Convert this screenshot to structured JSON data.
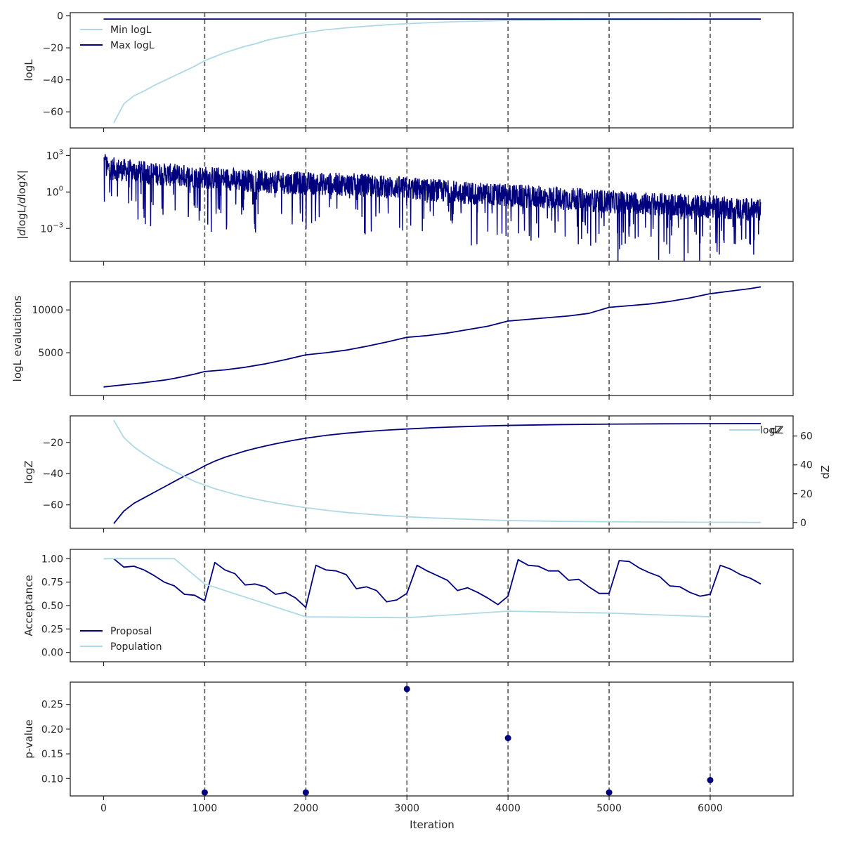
{
  "figure": {
    "xlabel": "Iteration"
  },
  "colors": {
    "dark": "#00007f",
    "light": "#add8e6",
    "axis": "#262626",
    "vline": "#555555"
  },
  "x_ticks": [
    0,
    1000,
    2000,
    3000,
    4000,
    5000,
    6000
  ],
  "x_range": [
    -330,
    6820
  ],
  "vlines": [
    1000,
    2000,
    3000,
    4000,
    5000,
    6000
  ],
  "chart_data": [
    {
      "type": "line",
      "panel": "logL",
      "ylabel": "logL",
      "ylim": [
        -70,
        2
      ],
      "y_ticks": [
        0,
        -20,
        -40,
        -60
      ],
      "legend": "upper-left",
      "series": [
        {
          "name": "Min logL",
          "color": "light",
          "x": [
            100,
            200,
            300,
            400,
            500,
            600,
            700,
            800,
            900,
            1000,
            1100,
            1200,
            1300,
            1400,
            1500,
            1600,
            1700,
            1800,
            1900,
            2000,
            2200,
            2400,
            2600,
            2800,
            3000,
            3250,
            3500,
            3750,
            4000,
            4500,
            5000,
            5500,
            6000,
            6500
          ],
          "y": [
            -67,
            -55,
            -50,
            -47,
            -43.5,
            -40.5,
            -37.5,
            -34.5,
            -31.5,
            -28,
            -25.5,
            -23,
            -21,
            -19,
            -17.5,
            -15.5,
            -14,
            -12.8,
            -11.6,
            -10.4,
            -8.7,
            -7.5,
            -6.5,
            -5.6,
            -4.9,
            -4.2,
            -3.6,
            -3.2,
            -2.9,
            -2.6,
            -2.4,
            -2.3,
            -2.2,
            -2.2
          ]
        },
        {
          "name": "Max logL",
          "color": "dark",
          "x": [
            0,
            6500
          ],
          "y": [
            -2,
            -2
          ]
        }
      ]
    },
    {
      "type": "line",
      "panel": "gradient",
      "ylabel": "|dlogL/dlogX|",
      "yscale": "log",
      "ylim": [
        -5.7,
        3.6
      ],
      "y_ticks": [
        {
          "exp": 3,
          "label": "10^3"
        },
        {
          "exp": 0,
          "label": "10^0"
        },
        {
          "exp": -3,
          "label": "10^-3"
        }
      ],
      "series": [
        {
          "name": "",
          "color": "dark",
          "noisy": true,
          "x": [
            0,
            500,
            1000,
            1500,
            2000,
            2500,
            3000,
            3500,
            4000,
            4500,
            5000,
            5500,
            6000,
            6500
          ],
          "log10_y_center": [
            2.0,
            1.5,
            1.2,
            0.9,
            0.7,
            0.6,
            0.3,
            0.0,
            -0.3,
            -0.5,
            -0.8,
            -1.0,
            -1.2,
            -1.5
          ],
          "x_range": [
            0,
            6500
          ],
          "log10_y_range": [
            -5.0,
            3.6
          ]
        }
      ]
    },
    {
      "type": "line",
      "panel": "evaluations",
      "ylabel": "logL evaluations",
      "ylim": [
        0,
        13300
      ],
      "y_ticks": [
        5000,
        10000
      ],
      "series": [
        {
          "name": "",
          "color": "dark",
          "x": [
            0,
            200,
            400,
            500,
            600,
            700,
            800,
            900,
            1000,
            1200,
            1400,
            1600,
            1800,
            2000,
            2200,
            2400,
            2600,
            2800,
            3000,
            3200,
            3400,
            3600,
            3800,
            4000,
            4200,
            4400,
            4600,
            4800,
            5000,
            5200,
            5400,
            5600,
            5800,
            6000,
            6200,
            6400,
            6500
          ],
          "y": [
            1000,
            1250,
            1500,
            1650,
            1800,
            2000,
            2250,
            2500,
            2800,
            3000,
            3300,
            3700,
            4200,
            4750,
            5000,
            5300,
            5750,
            6250,
            6800,
            7000,
            7300,
            7700,
            8100,
            8700,
            8900,
            9100,
            9300,
            9600,
            10300,
            10500,
            10700,
            11000,
            11400,
            11900,
            12200,
            12500,
            12700
          ]
        }
      ]
    },
    {
      "type": "line",
      "panel": "logZ",
      "ylabel": "logZ",
      "ylim": [
        -75,
        -3
      ],
      "y_ticks": [
        -20,
        -40,
        -60
      ],
      "y2label": "dZ",
      "y2lim": [
        -4,
        74
      ],
      "y2_ticks": [
        0,
        20,
        40,
        60
      ],
      "legend": "upper-right",
      "series": [
        {
          "name": "logZ",
          "color": "dark",
          "axis": "left",
          "x": [
            100,
            200,
            300,
            400,
            500,
            600,
            700,
            800,
            900,
            1000,
            1100,
            1200,
            1300,
            1400,
            1500,
            1600,
            1700,
            1800,
            1900,
            2000,
            2200,
            2400,
            2600,
            2800,
            3000,
            3250,
            3500,
            3750,
            4000,
            4500,
            5000,
            5500,
            6000,
            6500
          ],
          "y": [
            -72,
            -64,
            -59,
            -55.5,
            -52,
            -48.5,
            -45,
            -41.5,
            -38.5,
            -35,
            -32,
            -29.5,
            -27.5,
            -25.5,
            -23.8,
            -22.3,
            -20.9,
            -19.6,
            -18.4,
            -17.3,
            -15.5,
            -14.1,
            -13,
            -12.1,
            -11.4,
            -10.6,
            -10,
            -9.5,
            -9.1,
            -8.6,
            -8.3,
            -8.1,
            -8,
            -7.9
          ]
        },
        {
          "name": "dZ",
          "color": "light",
          "axis": "right",
          "x": [
            100,
            200,
            300,
            400,
            500,
            600,
            700,
            800,
            900,
            1000,
            1100,
            1200,
            1300,
            1400,
            1500,
            1600,
            1700,
            1800,
            1900,
            2000,
            2200,
            2400,
            2600,
            2800,
            3000,
            3250,
            3500,
            3750,
            4000,
            4500,
            5000,
            5500,
            6000,
            6500
          ],
          "y": [
            71,
            59,
            52.5,
            47.5,
            43,
            39,
            35.5,
            32,
            28.5,
            26,
            23.5,
            21.5,
            19.5,
            17.8,
            16.3,
            14.9,
            13.6,
            12.4,
            11.3,
            10.3,
            8.5,
            7,
            5.8,
            4.8,
            4,
            3.2,
            2.5,
            1.9,
            1.4,
            0.8,
            0.5,
            0.3,
            0.2,
            0.1
          ]
        }
      ]
    },
    {
      "type": "line",
      "panel": "acceptance",
      "ylabel": "Acceptance",
      "ylim": [
        -0.1,
        1.1
      ],
      "y_ticks": [
        0.0,
        0.25,
        0.5,
        0.75,
        1.0
      ],
      "y_tick_labels": [
        "0.00",
        "0.25",
        "0.50",
        "0.75",
        "1.00"
      ],
      "legend": "lower-left",
      "series": [
        {
          "name": "Proposal",
          "color": "dark",
          "x": [
            100,
            200,
            300,
            400,
            500,
            600,
            700,
            800,
            900,
            1000,
            1100,
            1200,
            1300,
            1400,
            1500,
            1600,
            1700,
            1800,
            1900,
            2000,
            2100,
            2200,
            2300,
            2400,
            2500,
            2600,
            2700,
            2800,
            2900,
            3000,
            3100,
            3200,
            3300,
            3400,
            3500,
            3600,
            3700,
            3800,
            3900,
            4000,
            4100,
            4200,
            4300,
            4400,
            4500,
            4600,
            4700,
            4800,
            4900,
            5000,
            5100,
            5200,
            5300,
            5400,
            5500,
            5600,
            5700,
            5800,
            5900,
            6000,
            6100,
            6200,
            6300,
            6400,
            6500
          ],
          "y": [
            1.0,
            0.91,
            0.92,
            0.88,
            0.82,
            0.75,
            0.71,
            0.62,
            0.61,
            0.55,
            0.96,
            0.88,
            0.84,
            0.72,
            0.73,
            0.7,
            0.62,
            0.64,
            0.58,
            0.48,
            0.93,
            0.88,
            0.87,
            0.83,
            0.68,
            0.7,
            0.66,
            0.54,
            0.56,
            0.63,
            0.93,
            0.87,
            0.82,
            0.77,
            0.66,
            0.69,
            0.64,
            0.58,
            0.51,
            0.6,
            0.99,
            0.93,
            0.92,
            0.87,
            0.87,
            0.77,
            0.78,
            0.7,
            0.63,
            0.63,
            0.98,
            0.97,
            0.9,
            0.85,
            0.81,
            0.71,
            0.7,
            0.64,
            0.6,
            0.62,
            0.93,
            0.89,
            0.83,
            0.79,
            0.73
          ]
        },
        {
          "name": "Population",
          "color": "light",
          "x": [
            0,
            700,
            1000,
            2000,
            3000,
            4000,
            5000,
            6000
          ],
          "y": [
            1.0,
            1.0,
            0.73,
            0.38,
            0.37,
            0.44,
            0.42,
            0.38
          ]
        }
      ]
    },
    {
      "type": "scatter",
      "panel": "pvalue",
      "ylabel": "p-value",
      "ylim": [
        0.065,
        0.295
      ],
      "y_ticks": [
        0.1,
        0.15,
        0.2,
        0.25
      ],
      "y_tick_labels": [
        "0.10",
        "0.15",
        "0.20",
        "0.25"
      ],
      "series": [
        {
          "name": "",
          "color": "dark",
          "x": [
            1000,
            2000,
            3000,
            4000,
            5000,
            6000
          ],
          "y": [
            0.072,
            0.072,
            0.281,
            0.182,
            0.072,
            0.097
          ]
        }
      ]
    }
  ]
}
